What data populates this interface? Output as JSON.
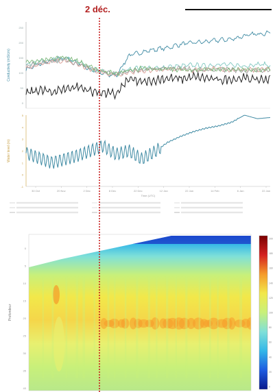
{
  "event_label": "2 déc.",
  "chart_data": [
    {
      "type": "line",
      "panel": "top",
      "ylabel": "Conductivity (mS/cm)",
      "ytick_labels": [
        "250",
        "200",
        "150",
        "100",
        "50",
        "0"
      ],
      "series": [
        {
          "name": "",
          "color": "#3e8aa3",
          "values": [
            150,
            162,
            170,
            178,
            165,
            150,
            140,
            135,
            182,
            190,
            196,
            200,
            208,
            212,
            214,
            218,
            220,
            228,
            232,
            236
          ]
        },
        {
          "name": "",
          "color": "#7fc7c0",
          "values": [
            160,
            168,
            172,
            175,
            168,
            152,
            145,
            140,
            150,
            155,
            152,
            156,
            158,
            160,
            158,
            162,
            160,
            158,
            162,
            160
          ]
        },
        {
          "name": "",
          "color": "#d99a92",
          "values": [
            152,
            160,
            168,
            170,
            162,
            150,
            143,
            138,
            142,
            146,
            148,
            150,
            150,
            148,
            150,
            152,
            148,
            150,
            149,
            151
          ]
        },
        {
          "name": "",
          "color": "#a0a0a0",
          "values": [
            158,
            164,
            170,
            172,
            164,
            152,
            144,
            139,
            145,
            150,
            152,
            152,
            154,
            150,
            148,
            150,
            150,
            146,
            148,
            150
          ]
        },
        {
          "name": "",
          "color": "#7cb77a",
          "values": [
            165,
            170,
            176,
            178,
            170,
            155,
            146,
            140,
            148,
            152,
            150,
            152,
            150,
            148,
            150,
            150,
            148,
            150,
            150,
            148
          ]
        },
        {
          "name": "",
          "color": "#222222",
          "values": [
            95,
            102,
            98,
            105,
            110,
            100,
            96,
            92,
            128,
            120,
            125,
            130,
            128,
            132,
            130,
            125,
            128,
            130,
            126,
            128
          ]
        }
      ],
      "xlim": [
        0,
        19
      ]
    },
    {
      "type": "line",
      "panel": "middle",
      "ylabel": "Water level (m)",
      "xlabel": "Time (UTC)",
      "x_ticks": [
        "30 Oct",
        "20 Nov",
        "2 Dec",
        "8 Dec",
        "22 Dec",
        "12 Jan",
        "22 Jan",
        "14 Feb",
        "6 Jan",
        "22 Jan"
      ],
      "ytick_labels": [
        "-1",
        "0",
        "1",
        "2",
        "3",
        "4",
        "5"
      ],
      "series": [
        {
          "name": "",
          "color": "#3e8aa3",
          "x": [
            0,
            2,
            4,
            6,
            7,
            8,
            9,
            10,
            11,
            12,
            13,
            14,
            15,
            16,
            17,
            18,
            19
          ],
          "y": [
            1.8,
            1.0,
            1.6,
            2.4,
            1.7,
            2.0,
            1.3,
            1.9,
            2.7,
            3.2,
            3.6,
            3.9,
            4.1,
            4.4,
            5.0,
            4.7,
            4.8
          ]
        }
      ],
      "xlim": [
        0,
        19
      ],
      "ylim": [
        -1,
        5
      ]
    },
    {
      "type": "heatmap",
      "panel": "bottom",
      "ylabel": "Profondeur",
      "colorbar_ticks": [
        "200",
        "180",
        "160",
        "140",
        "120",
        "100",
        "80",
        "60",
        "40",
        "20",
        "0"
      ],
      "colorscale": [
        "#0a1a8c",
        "#1e5be0",
        "#33b7e8",
        "#7fe0d8",
        "#c8f07a",
        "#f2e84a",
        "#f59a2a",
        "#d42020",
        "#7a0000"
      ]
    }
  ]
}
